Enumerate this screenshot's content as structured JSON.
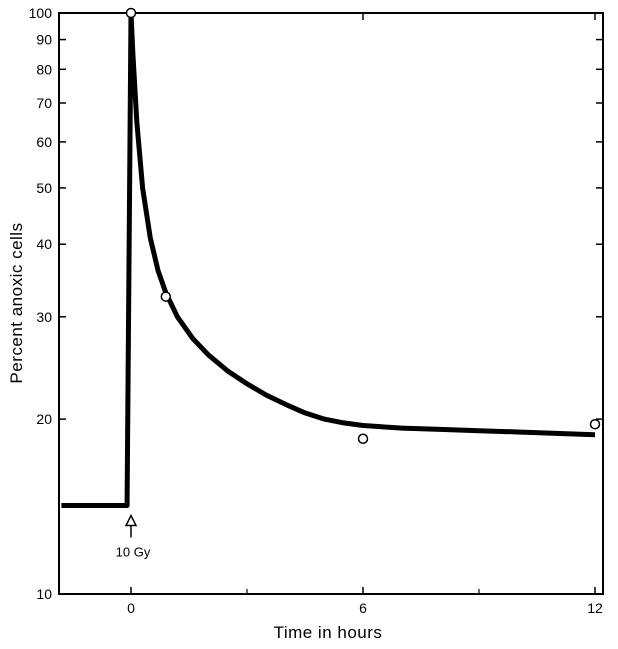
{
  "chart_data": {
    "type": "line",
    "title": "",
    "xlabel": "Time in hours",
    "ylabel": "Percent anoxic cells",
    "xlim": [
      -1.8,
      12
    ],
    "ylim": [
      10,
      100
    ],
    "yscale": "log",
    "grid": false,
    "x_ticks": [
      0,
      6,
      12
    ],
    "x_tick_labels": [
      "0",
      "6",
      "12"
    ],
    "y_ticks": [
      10,
      20,
      30,
      40,
      50,
      60,
      70,
      80,
      90,
      100
    ],
    "y_tick_labels": [
      "10",
      "20",
      "30",
      "40",
      "50",
      "60",
      "70",
      "80",
      "90",
      "100"
    ],
    "series": [
      {
        "style": "curve",
        "x": [
          -1.8,
          -0.1,
          -0.1,
          0,
          0.05,
          0.15,
          0.3,
          0.5,
          0.7,
          0.9,
          1.2,
          1.6,
          2.0,
          2.5,
          3.0,
          3.5,
          4.0,
          4.5,
          5.0,
          5.5,
          6.0,
          7.0,
          8.0,
          9.0,
          10.0,
          11.0,
          12.0
        ],
        "y": [
          14.2,
          14.2,
          14.5,
          100,
          85,
          65,
          50,
          41,
          36,
          33,
          30,
          27.5,
          25.8,
          24.2,
          23,
          22,
          21.2,
          20.5,
          20,
          19.7,
          19.5,
          19.3,
          19.2,
          19.1,
          19.0,
          18.9,
          18.8
        ]
      },
      {
        "style": "markers",
        "x": [
          0,
          0.9,
          6,
          12
        ],
        "y": [
          100,
          32.5,
          18.5,
          19.6
        ]
      }
    ],
    "annotations": [
      {
        "text": "10 Gy",
        "x": 0,
        "y": 14.2
      }
    ]
  }
}
